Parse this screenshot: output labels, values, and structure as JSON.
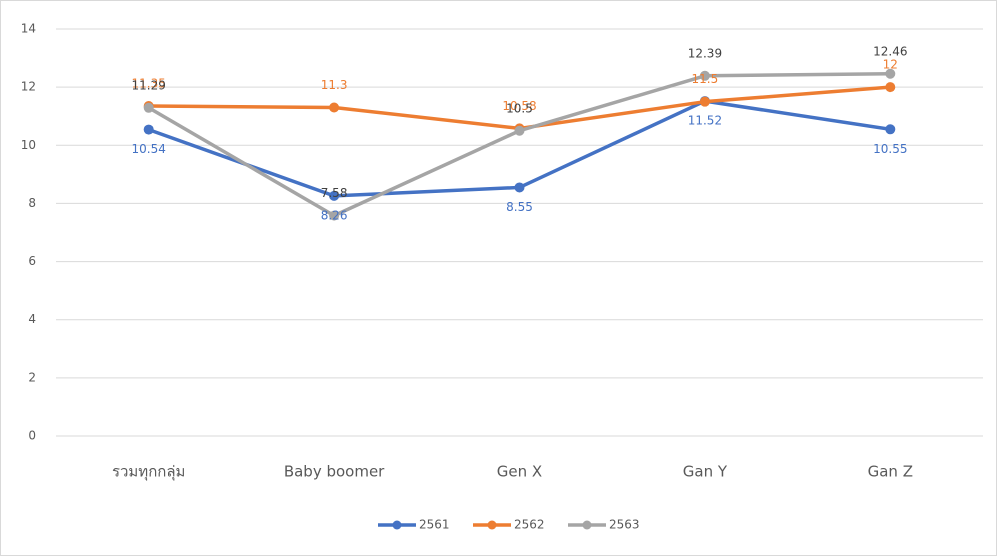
{
  "chart_data": {
    "type": "line",
    "categories": [
      "รวมทุกกลุ่ม",
      "Baby boomer",
      "Gen X",
      "Gan Y",
      "Gan Z"
    ],
    "series": [
      {
        "name": "2561",
        "color": "#4472c4",
        "label_color": "#4472c4",
        "values": [
          10.54,
          8.26,
          8.55,
          11.52,
          10.55
        ]
      },
      {
        "name": "2562",
        "color": "#ed7d31",
        "label_color": "#ed7d31",
        "values": [
          11.35,
          11.3,
          10.58,
          11.5,
          12
        ]
      },
      {
        "name": "2563",
        "color": "#a5a5a5",
        "label_color": "#404040",
        "values": [
          11.29,
          7.58,
          10.5,
          12.39,
          12.46
        ]
      }
    ],
    "ylim": [
      0,
      14
    ],
    "yticks": [
      0,
      2,
      4,
      6,
      8,
      10,
      12,
      14
    ],
    "grid": true,
    "legend": "bottom"
  }
}
